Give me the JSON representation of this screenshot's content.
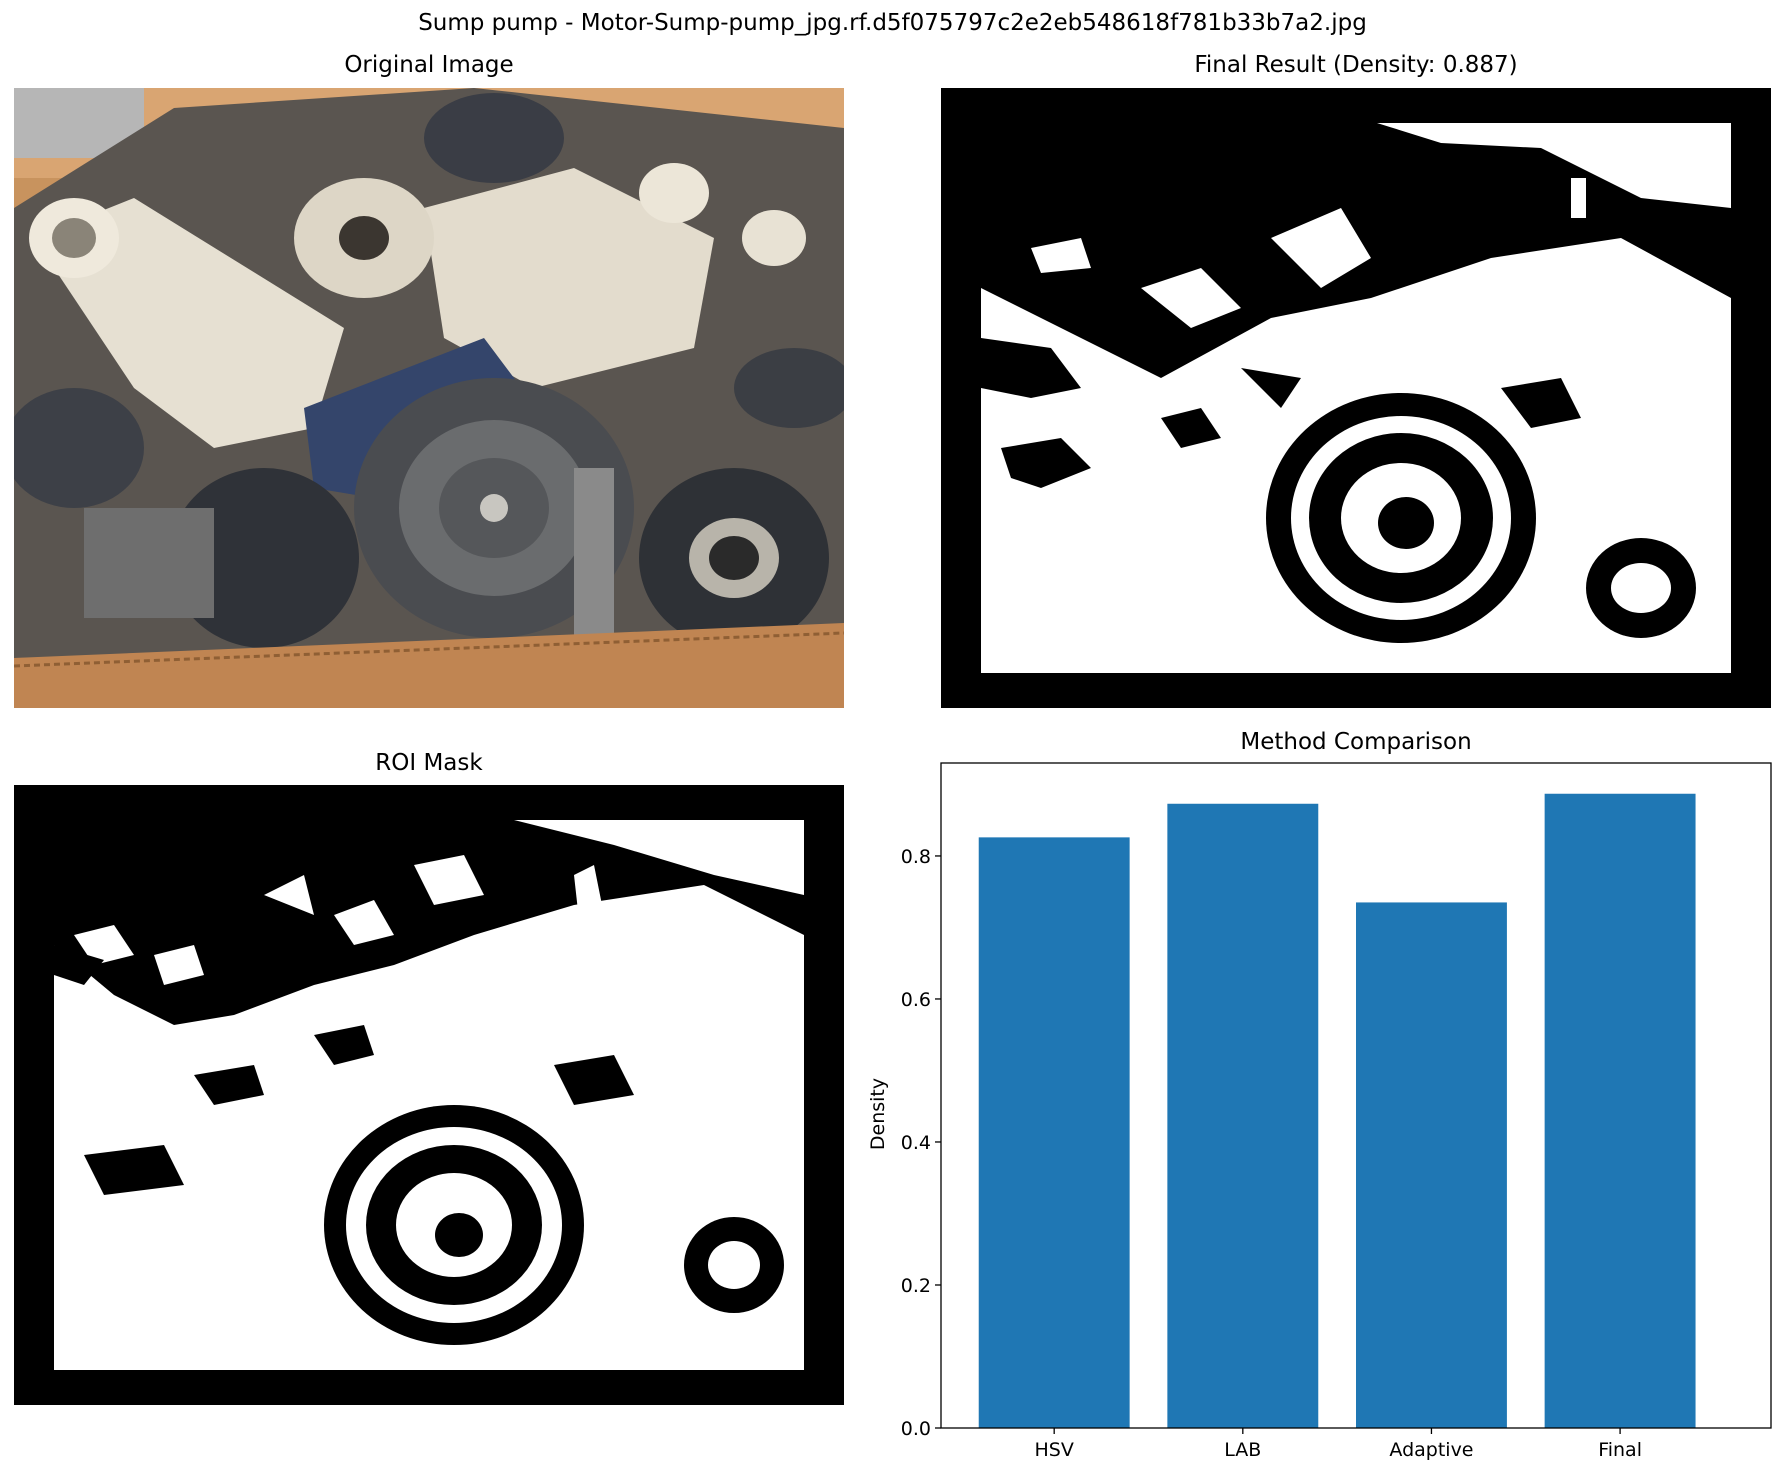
{
  "figure": {
    "suptitle": "Sump pump - Motor-Sump-pump_jpg.rf.d5f075797c2e2eb548618f781b33b7a2.jpg"
  },
  "panels": {
    "original": {
      "title": "Original Image"
    },
    "final": {
      "title": "Final Result (Density: 0.887)"
    },
    "roi": {
      "title": "ROI Mask"
    },
    "comparison": {
      "title": "Method Comparison"
    }
  },
  "colors": {
    "bar": "#1f77b4",
    "cardboard": "#c8935e",
    "pump_white": "#e6e0d2",
    "motor_dark": "#3a3d45",
    "motor_blue": "#34456b"
  },
  "chart_data": {
    "type": "bar",
    "title": "Method Comparison",
    "categories": [
      "HSV",
      "LAB",
      "Adaptive",
      "Final"
    ],
    "values": [
      0.826,
      0.873,
      0.735,
      0.887
    ],
    "xlabel": "",
    "ylabel": "Density",
    "ylim": [
      0,
      0.93
    ],
    "yticks": [
      0.0,
      0.2,
      0.4,
      0.6,
      0.8
    ],
    "ytick_labels": [
      "0.0",
      "0.2",
      "0.4",
      "0.6",
      "0.8"
    ],
    "grid": false,
    "legend": "none"
  }
}
